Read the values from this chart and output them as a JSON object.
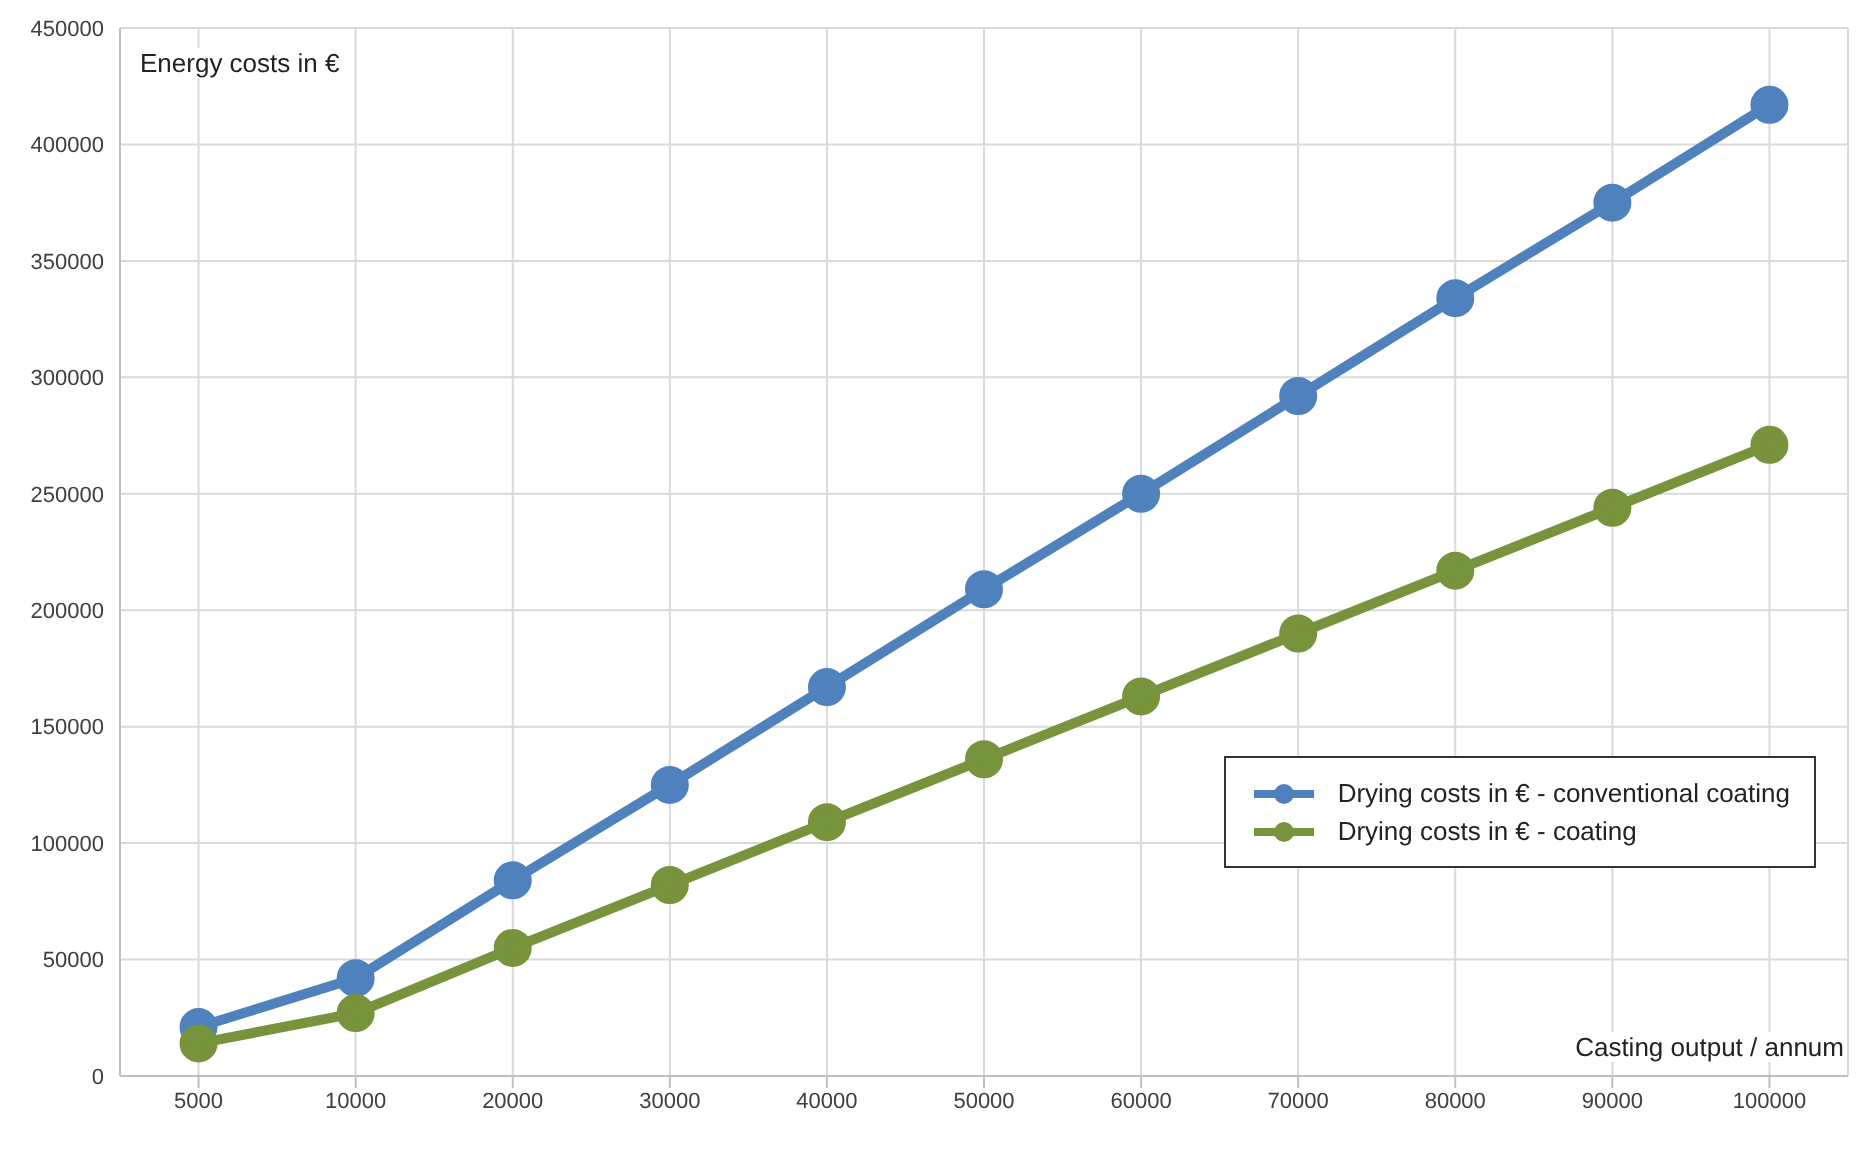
{
  "chart_data": {
    "type": "line",
    "xlabel": "Casting output / annum",
    "ylabel": "Energy costs in €",
    "categories": [
      "5000",
      "10000",
      "20000",
      "30000",
      "40000",
      "50000",
      "60000",
      "70000",
      "80000",
      "90000",
      "100000"
    ],
    "series": [
      {
        "name": "Drying costs in € - conventional coating",
        "color": "#4f81bd",
        "values": [
          21000,
          42000,
          84000,
          125000,
          167000,
          209000,
          250000,
          292000,
          334000,
          375000,
          417000
        ]
      },
      {
        "name": "Drying costs in € - coating",
        "color": "#77933c",
        "values": [
          14000,
          27000,
          55000,
          82000,
          109000,
          136000,
          163000,
          190000,
          217000,
          244000,
          271000
        ]
      }
    ],
    "ylim": [
      0,
      450000
    ],
    "yticks": [
      0,
      50000,
      100000,
      150000,
      200000,
      250000,
      300000,
      350000,
      400000,
      450000
    ],
    "grid": true,
    "legend": "right",
    "marker": "circle",
    "line_style": "solid"
  }
}
